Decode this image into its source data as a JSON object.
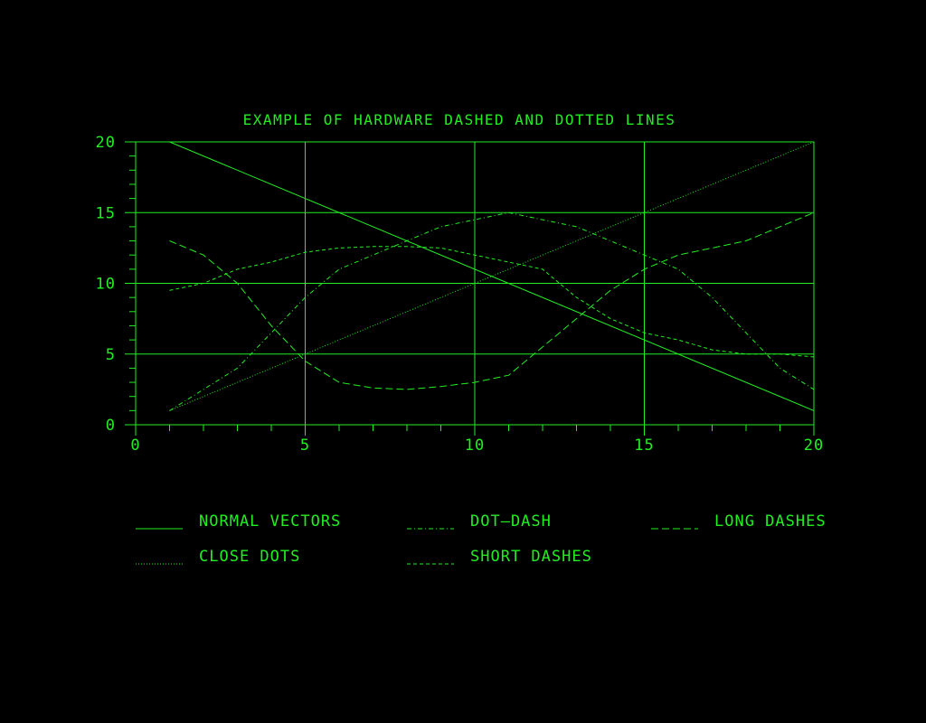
{
  "colors": {
    "background": "#000000",
    "foreground": "#22ee22"
  },
  "chart_data": {
    "type": "line",
    "title": "EXAMPLE OF HARDWARE DASHED AND DOTTED LINES",
    "xlabel": "",
    "ylabel": "",
    "xlim": [
      0,
      20
    ],
    "ylim": [
      0,
      20
    ],
    "x_ticks": [
      "0",
      "5",
      "10",
      "15",
      "20"
    ],
    "y_ticks": [
      "0",
      "5",
      "10",
      "15",
      "20"
    ],
    "grid": true,
    "legend_placement": "bottom",
    "series": [
      {
        "name": "NORMAL VECTORS",
        "style": "solid",
        "x": [
          1,
          20
        ],
        "y": [
          20,
          1
        ]
      },
      {
        "name": "DOT—DASH",
        "style": "dot-dash",
        "x": [
          1,
          2,
          3,
          4,
          5,
          6,
          7,
          8,
          9,
          10,
          11,
          12,
          13,
          14,
          15,
          16,
          17,
          18,
          19,
          20
        ],
        "y": [
          1,
          2.5,
          4,
          6.5,
          9,
          11,
          12,
          13,
          14,
          14.5,
          15,
          14.5,
          14,
          13,
          12,
          11,
          9,
          6.5,
          4,
          2.5
        ]
      },
      {
        "name": "LONG DASHES",
        "style": "long-dash",
        "x": [
          1,
          2,
          3,
          4,
          5,
          6,
          7,
          8,
          9,
          10,
          11,
          12,
          13,
          14,
          15,
          16,
          17,
          18,
          19,
          20
        ],
        "y": [
          13,
          12,
          10,
          7,
          4.5,
          3,
          2.6,
          2.5,
          2.7,
          3,
          3.5,
          5.5,
          7.5,
          9.5,
          11,
          12,
          12.5,
          13,
          14,
          15
        ]
      },
      {
        "name": "CLOSE DOTS",
        "style": "close-dots",
        "x": [
          1,
          20
        ],
        "y": [
          1,
          20
        ]
      },
      {
        "name": "SHORT DASHES",
        "style": "short-dash",
        "x": [
          1,
          2,
          3,
          4,
          5,
          6,
          7,
          8,
          9,
          10,
          11,
          12,
          13,
          14,
          15,
          16,
          17,
          18,
          19,
          20
        ],
        "y": [
          9.5,
          10,
          11,
          11.5,
          12.2,
          12.5,
          12.6,
          12.6,
          12.5,
          12,
          11.5,
          11,
          9,
          7.5,
          6.5,
          6,
          5.3,
          5,
          5,
          4.8
        ]
      }
    ],
    "legend": [
      {
        "label": "NORMAL VECTORS",
        "style": "solid"
      },
      {
        "label": "DOT—DASH",
        "style": "dot-dash"
      },
      {
        "label": "LONG DASHES",
        "style": "long-dash"
      },
      {
        "label": "CLOSE DOTS",
        "style": "close-dots"
      },
      {
        "label": "SHORT DASHES",
        "style": "short-dash"
      }
    ]
  }
}
